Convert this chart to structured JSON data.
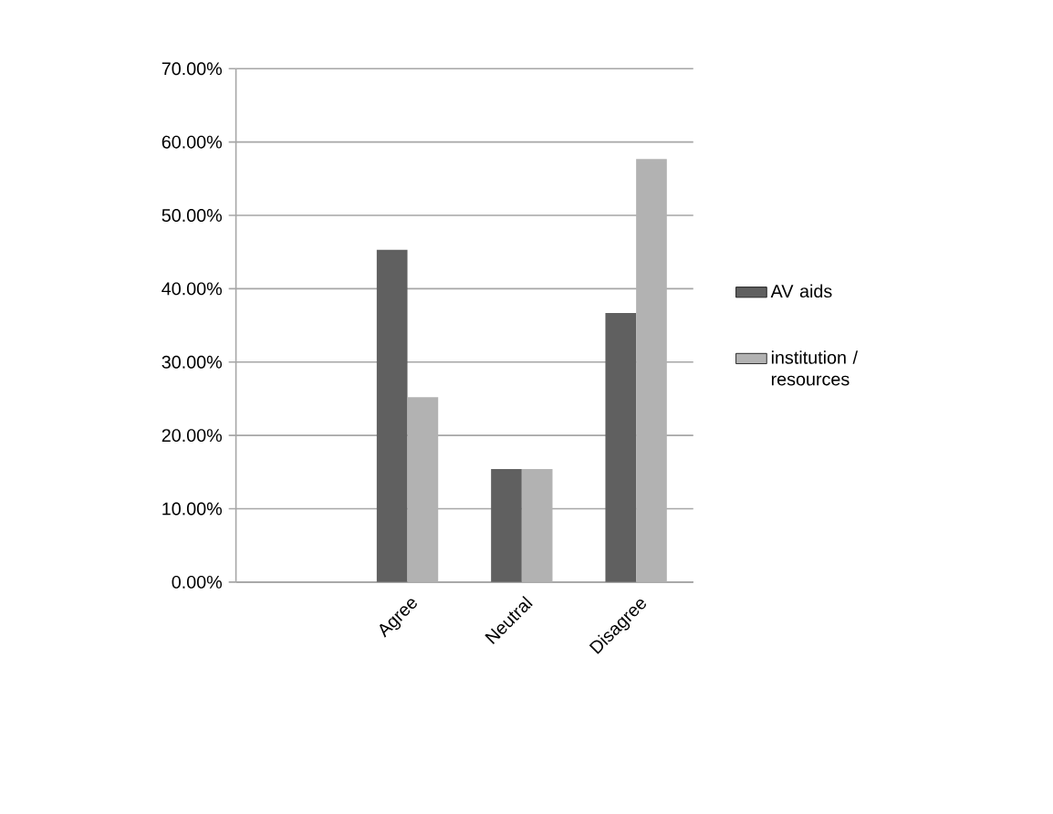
{
  "chart_data": {
    "type": "bar",
    "categories": [
      null,
      "Agree",
      "Neutral",
      "Disagree"
    ],
    "series": [
      {
        "name": "AV aids",
        "color": "#606060",
        "values": [
          null,
          45.3,
          15.4,
          36.7
        ]
      },
      {
        "name": "institution / resources",
        "color": "#b2b2b2",
        "values": [
          null,
          25.2,
          15.4,
          57.7
        ]
      }
    ],
    "ylim": [
      0,
      70
    ],
    "yticks": [
      {
        "value": 0,
        "label": "0.00%"
      },
      {
        "value": 10,
        "label": "10.00%"
      },
      {
        "value": 20,
        "label": "20.00%"
      },
      {
        "value": 30,
        "label": "30.00%"
      },
      {
        "value": 40,
        "label": "40.00%"
      },
      {
        "value": 50,
        "label": "50.00%"
      },
      {
        "value": 60,
        "label": "60.00%"
      },
      {
        "value": 70,
        "label": "70.00%"
      }
    ],
    "grid": "y",
    "legend": "right"
  }
}
